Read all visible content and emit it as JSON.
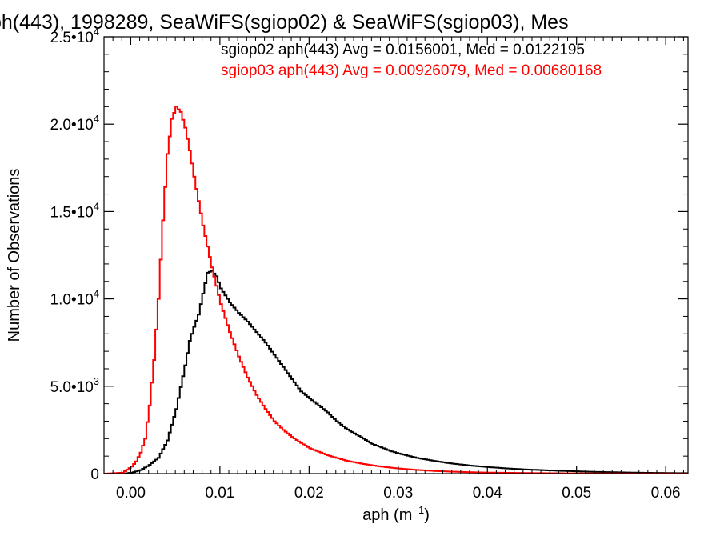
{
  "chart_data": {
    "type": "line",
    "title": "ph(443), 1998289, SeaWiFS(sgiop02) & SeaWiFS(sgiop03), Mes",
    "xlabel_main": "aph (m",
    "xlabel_sup": "−1",
    "xlabel_end": ")",
    "ylabel": "Number of Observations",
    "xlim": [
      -0.003,
      0.0625
    ],
    "ylim": [
      0,
      25000
    ],
    "x_ticks": [
      {
        "value": 0.0,
        "label": "0.00"
      },
      {
        "value": 0.01,
        "label": "0.01"
      },
      {
        "value": 0.02,
        "label": "0.02"
      },
      {
        "value": 0.03,
        "label": "0.03"
      },
      {
        "value": 0.04,
        "label": "0.04"
      },
      {
        "value": 0.05,
        "label": "0.05"
      },
      {
        "value": 0.06,
        "label": "0.06"
      }
    ],
    "y_ticks": [
      {
        "value": 0,
        "mant": "0",
        "exp": ""
      },
      {
        "value": 5000,
        "mant": "5.0•10",
        "exp": "3"
      },
      {
        "value": 10000,
        "mant": "1.0•10",
        "exp": "4"
      },
      {
        "value": 15000,
        "mant": "1.5•10",
        "exp": "4"
      },
      {
        "value": 20000,
        "mant": "2.0•10",
        "exp": "4"
      },
      {
        "value": 25000,
        "mant": "2.5•10",
        "exp": "4"
      }
    ],
    "stats": [
      {
        "text": "sgiop02 aph(443) Avg = 0.0156001, Med = 0.0122195",
        "color": "#000000"
      },
      {
        "text": "sgiop03 aph(443) Avg = 0.00926079, Med = 0.00680168",
        "color": "#ff0000"
      }
    ],
    "series": [
      {
        "color": "#000000",
        "points": [
          [
            -0.003,
            0
          ],
          [
            -0.001,
            0
          ],
          [
            0.0,
            50
          ],
          [
            0.001,
            200
          ],
          [
            0.002,
            500
          ],
          [
            0.003,
            900
          ],
          [
            0.004,
            1900
          ],
          [
            0.005,
            3700
          ],
          [
            0.006,
            6200
          ],
          [
            0.0065,
            7600
          ],
          [
            0.007,
            8400
          ],
          [
            0.0075,
            9100
          ],
          [
            0.008,
            10300
          ],
          [
            0.0085,
            11500
          ],
          [
            0.009,
            11600
          ],
          [
            0.0095,
            11300
          ],
          [
            0.01,
            10600
          ],
          [
            0.011,
            9800
          ],
          [
            0.012,
            9200
          ],
          [
            0.013,
            8700
          ],
          [
            0.014,
            8100
          ],
          [
            0.015,
            7500
          ],
          [
            0.016,
            6800
          ],
          [
            0.017,
            6100
          ],
          [
            0.018,
            5400
          ],
          [
            0.019,
            4700
          ],
          [
            0.02,
            4300
          ],
          [
            0.021,
            3900
          ],
          [
            0.022,
            3500
          ],
          [
            0.023,
            3000
          ],
          [
            0.024,
            2600
          ],
          [
            0.025,
            2300
          ],
          [
            0.026,
            2000
          ],
          [
            0.027,
            1700
          ],
          [
            0.028,
            1500
          ],
          [
            0.029,
            1300
          ],
          [
            0.03,
            1150
          ],
          [
            0.032,
            900
          ],
          [
            0.034,
            720
          ],
          [
            0.036,
            570
          ],
          [
            0.038,
            460
          ],
          [
            0.04,
            370
          ],
          [
            0.042,
            300
          ],
          [
            0.044,
            240
          ],
          [
            0.046,
            200
          ],
          [
            0.048,
            160
          ],
          [
            0.05,
            130
          ],
          [
            0.052,
            100
          ],
          [
            0.054,
            80
          ],
          [
            0.056,
            60
          ],
          [
            0.058,
            45
          ],
          [
            0.06,
            35
          ],
          [
            0.0625,
            25
          ]
        ]
      },
      {
        "color": "#ff0000",
        "points": [
          [
            -0.003,
            0
          ],
          [
            -0.001,
            50
          ],
          [
            0.0,
            400
          ],
          [
            0.0005,
            700
          ],
          [
            0.001,
            1200
          ],
          [
            0.0015,
            2000
          ],
          [
            0.002,
            3900
          ],
          [
            0.0025,
            6500
          ],
          [
            0.003,
            10000
          ],
          [
            0.0035,
            14500
          ],
          [
            0.004,
            18300
          ],
          [
            0.0045,
            20300
          ],
          [
            0.005,
            21000
          ],
          [
            0.0055,
            20700
          ],
          [
            0.006,
            19800
          ],
          [
            0.0065,
            18500
          ],
          [
            0.007,
            17000
          ],
          [
            0.0075,
            15600
          ],
          [
            0.008,
            14200
          ],
          [
            0.009,
            11800
          ],
          [
            0.01,
            9700
          ],
          [
            0.011,
            8100
          ],
          [
            0.012,
            6700
          ],
          [
            0.013,
            5500
          ],
          [
            0.014,
            4500
          ],
          [
            0.015,
            3700
          ],
          [
            0.016,
            3000
          ],
          [
            0.017,
            2500
          ],
          [
            0.018,
            2100
          ],
          [
            0.019,
            1750
          ],
          [
            0.02,
            1450
          ],
          [
            0.022,
            1050
          ],
          [
            0.024,
            750
          ],
          [
            0.026,
            550
          ],
          [
            0.028,
            400
          ],
          [
            0.03,
            290
          ],
          [
            0.032,
            210
          ],
          [
            0.034,
            150
          ],
          [
            0.036,
            110
          ],
          [
            0.038,
            80
          ],
          [
            0.04,
            60
          ],
          [
            0.045,
            30
          ],
          [
            0.05,
            15
          ],
          [
            0.055,
            8
          ],
          [
            0.0625,
            3
          ]
        ]
      }
    ]
  }
}
